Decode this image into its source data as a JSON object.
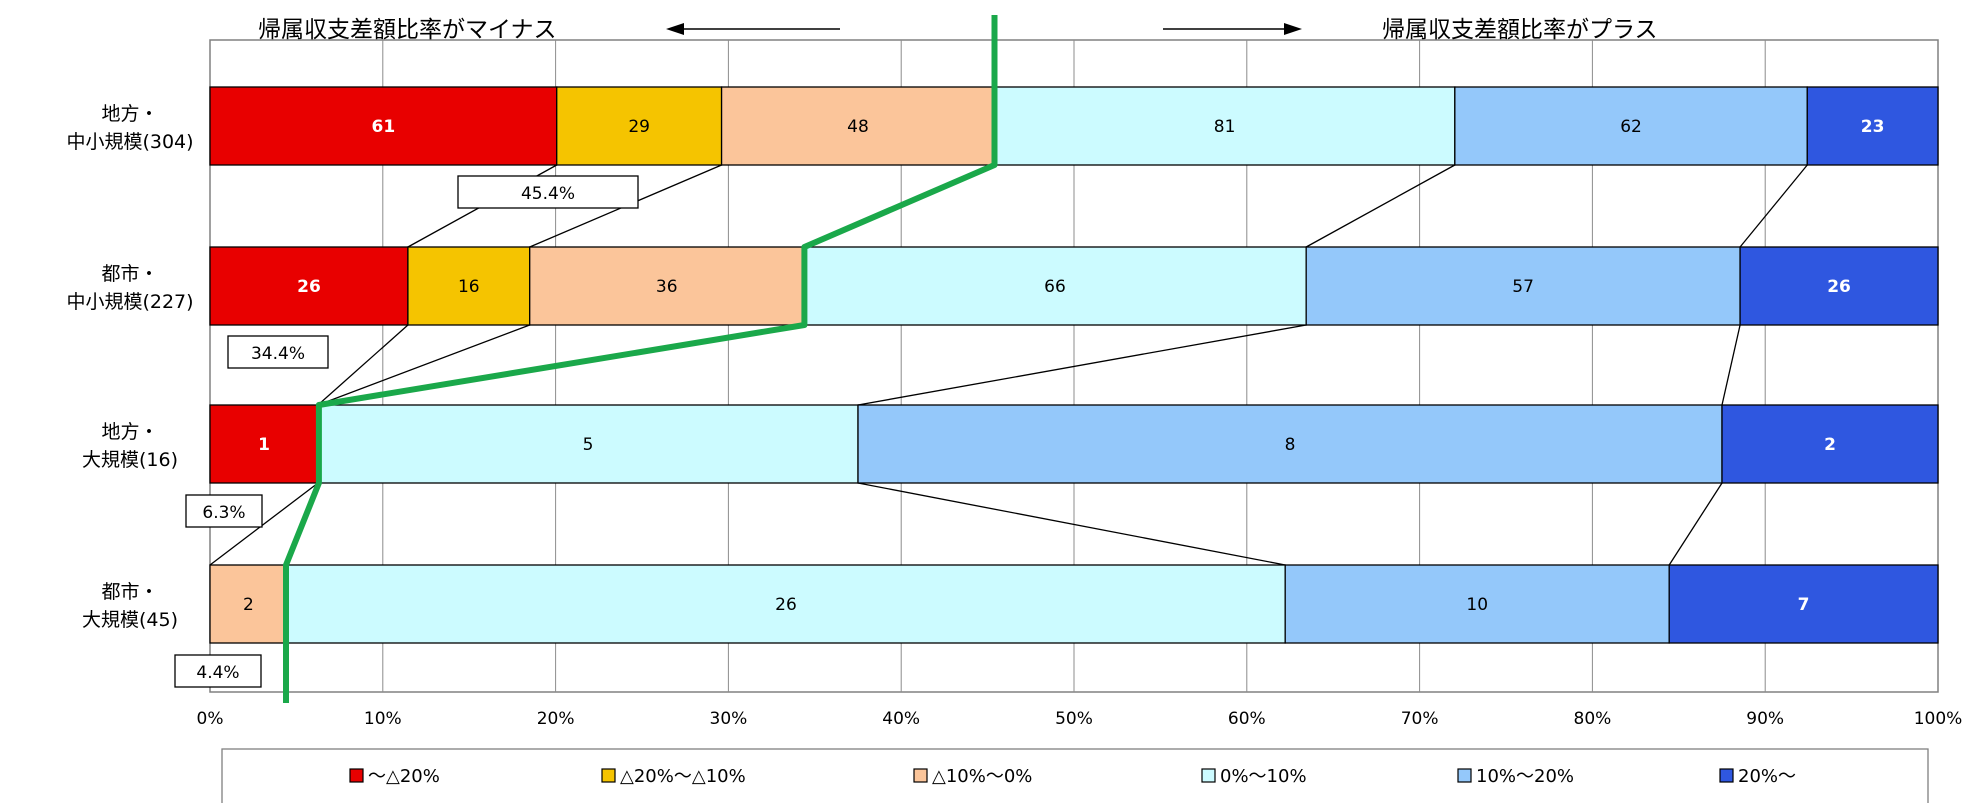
{
  "chart_data": {
    "type": "bar",
    "orientation": "horizontal",
    "stacked": "percent",
    "title": "",
    "xlabel": "",
    "ylabel": "",
    "xlim": [
      0,
      100
    ],
    "x_tick_labels": [
      "0%",
      "10%",
      "20%",
      "30%",
      "40%",
      "50%",
      "60%",
      "70%",
      "80%",
      "90%",
      "100%"
    ],
    "grid": true,
    "legend_position": "bottom",
    "categories": [
      {
        "line1": "地方・",
        "line2": "中小規模(304)"
      },
      {
        "line1": "都市・",
        "line2": "中小規模(227)"
      },
      {
        "line1": "地方・",
        "line2": "大規模(16)"
      },
      {
        "line1": "都市・",
        "line2": "大規模(45)"
      }
    ],
    "series": [
      {
        "name": "～△20%",
        "color": "#e80000",
        "text_color": "#ffffff",
        "values": [
          61,
          26,
          1,
          0
        ]
      },
      {
        "name": "△20%～△10%",
        "color": "#f5c400",
        "text_color": "#000000",
        "values": [
          29,
          16,
          0,
          0
        ]
      },
      {
        "name": "△10%～0%",
        "color": "#fbc59a",
        "text_color": "#000000",
        "values": [
          48,
          36,
          0,
          2
        ]
      },
      {
        "name": "0%～10%",
        "color": "#ccfbff",
        "text_color": "#000000",
        "values": [
          81,
          66,
          5,
          26
        ]
      },
      {
        "name": "10%～20%",
        "color": "#94c8fa",
        "text_color": "#000000",
        "values": [
          62,
          57,
          8,
          10
        ]
      },
      {
        "name": "20%～",
        "color": "#2f57e0",
        "text_color": "#ffffff",
        "values": [
          23,
          26,
          2,
          7
        ]
      }
    ],
    "minus_share_labels": [
      "45.4%",
      "34.4%",
      "6.3%",
      "4.4%"
    ],
    "minus_share_values": [
      45.4,
      34.4,
      6.3,
      4.4
    ],
    "annotations": {
      "left": "帰属収支差額比率がマイナス",
      "right": "帰属収支差額比率がプラス"
    },
    "accent_line_color": "#1aa84a"
  }
}
